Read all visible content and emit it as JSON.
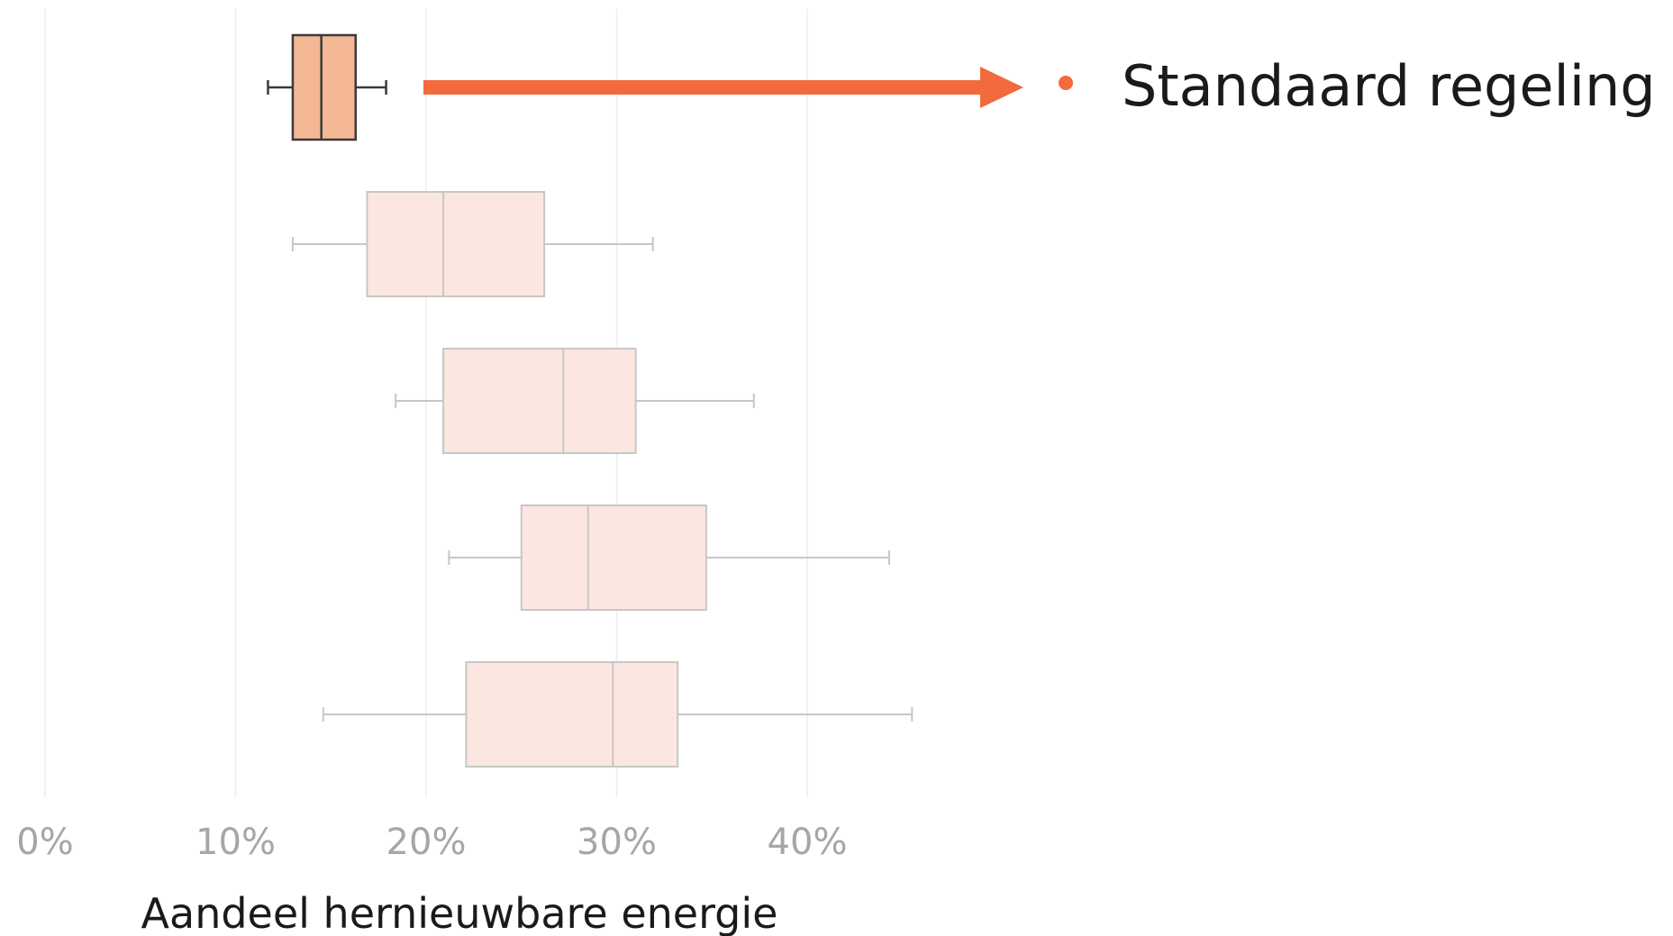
{
  "chart_data": {
    "type": "boxplot",
    "orientation": "horizontal",
    "xlabel": "Aandeel hernieuwbare energie",
    "xlim": [
      0,
      46
    ],
    "x_ticks": [
      0,
      10,
      20,
      30,
      40
    ],
    "x_tick_labels": [
      "0%",
      "10%",
      "20%",
      "30%",
      "40%"
    ],
    "grid": "vertical",
    "boxes": [
      {
        "min": 11.7,
        "q1": 13.0,
        "median": 14.5,
        "q3": 16.3,
        "max": 17.9,
        "highlighted": true
      },
      {
        "min": 13.0,
        "q1": 16.9,
        "median": 20.9,
        "q3": 26.2,
        "max": 31.9,
        "highlighted": false
      },
      {
        "min": 18.4,
        "q1": 20.9,
        "median": 27.2,
        "q3": 31.0,
        "max": 37.2,
        "highlighted": false
      },
      {
        "min": 21.2,
        "q1": 25.0,
        "median": 28.5,
        "q3": 34.7,
        "max": 44.3,
        "highlighted": false
      },
      {
        "min": 14.6,
        "q1": 22.1,
        "median": 29.8,
        "q3": 33.2,
        "max": 45.5,
        "highlighted": false
      }
    ],
    "annotation": {
      "label": "Standaard regeling"
    },
    "colors": {
      "accent": "#f26a3d",
      "highlight_fill": "#f4b896",
      "highlight_stroke": "#3a3a3a",
      "box_fill": "#fbe7df",
      "box_stroke": "#c7c7c7",
      "grid": "#eeeeee",
      "tick_label": "#a6a6a6"
    }
  }
}
